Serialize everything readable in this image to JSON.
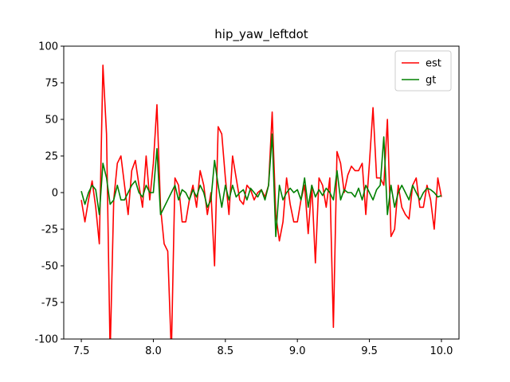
{
  "chart_data": {
    "type": "line",
    "title": "hip_yaw_leftdot",
    "x": [
      7.5,
      7.525,
      7.55,
      7.575,
      7.6,
      7.625,
      7.65,
      7.675,
      7.7,
      7.725,
      7.75,
      7.775,
      7.8,
      7.825,
      7.85,
      7.875,
      7.9,
      7.925,
      7.95,
      7.975,
      8.0,
      8.025,
      8.05,
      8.075,
      8.1,
      8.125,
      8.15,
      8.175,
      8.2,
      8.225,
      8.25,
      8.275,
      8.3,
      8.325,
      8.35,
      8.375,
      8.4,
      8.425,
      8.45,
      8.475,
      8.5,
      8.525,
      8.55,
      8.575,
      8.6,
      8.625,
      8.65,
      8.675,
      8.7,
      8.725,
      8.75,
      8.775,
      8.8,
      8.825,
      8.85,
      8.875,
      8.9,
      8.925,
      8.95,
      8.975,
      9.0,
      9.025,
      9.05,
      9.075,
      9.1,
      9.125,
      9.15,
      9.175,
      9.2,
      9.225,
      9.25,
      9.275,
      9.3,
      9.325,
      9.35,
      9.375,
      9.4,
      9.425,
      9.45,
      9.475,
      9.5,
      9.525,
      9.55,
      9.575,
      9.6,
      9.625,
      9.65,
      9.675,
      9.7,
      9.725,
      9.75,
      9.775,
      9.8,
      9.825,
      9.85,
      9.875,
      9.9,
      9.925,
      9.95,
      9.975,
      10.0
    ],
    "series": [
      {
        "name": "est",
        "color": "#ff0000",
        "values": [
          -5,
          -20,
          -5,
          8,
          -10,
          -35,
          87,
          40,
          -110,
          -5,
          20,
          25,
          5,
          -15,
          15,
          22,
          5,
          -10,
          25,
          -5,
          20,
          60,
          -10,
          -35,
          -40,
          -110,
          10,
          5,
          -20,
          -20,
          -5,
          5,
          -10,
          15,
          5,
          -15,
          0,
          -50,
          45,
          40,
          10,
          -15,
          25,
          10,
          -5,
          -8,
          5,
          2,
          -5,
          0,
          2,
          -3,
          5,
          55,
          -15,
          -33,
          -20,
          10,
          -8,
          -20,
          -20,
          -5,
          5,
          -28,
          5,
          -48,
          10,
          5,
          -10,
          10,
          -92,
          28,
          20,
          0,
          12,
          18,
          15,
          15,
          20,
          -15,
          20,
          58,
          10,
          10,
          5,
          50,
          -30,
          -25,
          5,
          -10,
          -15,
          -18,
          5,
          10,
          -10,
          -10,
          5,
          -5,
          -25,
          10,
          -3
        ]
      },
      {
        "name": "gt",
        "color": "#008000",
        "values": [
          1,
          -8,
          0,
          5,
          2,
          -15,
          20,
          10,
          -8,
          -5,
          5,
          -5,
          -5,
          0,
          5,
          8,
          0,
          -3,
          5,
          0,
          0,
          30,
          -15,
          -10,
          -5,
          0,
          5,
          -5,
          2,
          0,
          -5,
          2,
          -3,
          5,
          0,
          -10,
          -5,
          22,
          5,
          -10,
          5,
          -5,
          5,
          -3,
          0,
          2,
          -5,
          3,
          0,
          -3,
          2,
          -5,
          5,
          40,
          -30,
          5,
          -5,
          0,
          3,
          0,
          2,
          -5,
          10,
          -10,
          5,
          -3,
          2,
          -2,
          3,
          0,
          -5,
          15,
          -5,
          2,
          0,
          0,
          -3,
          3,
          -5,
          5,
          0,
          -5,
          2,
          5,
          38,
          -15,
          5,
          -10,
          0,
          5,
          0,
          -5,
          5,
          0,
          -5,
          0,
          3,
          2,
          0,
          -3,
          -2
        ]
      }
    ],
    "xlim": [
      7.378,
      10.122
    ],
    "xticks": [
      7.5,
      {
        "value": 8,
        "label": "8.0"
      },
      8.5,
      {
        "value": 9,
        "label": "9.0"
      },
      9.5,
      {
        "value": 10,
        "label": "10.0"
      }
    ],
    "ylim": [
      -100,
      100
    ],
    "yticks": [
      -100,
      -75,
      -50,
      -25,
      0,
      25,
      50,
      75,
      100
    ],
    "legend": "upper right"
  }
}
